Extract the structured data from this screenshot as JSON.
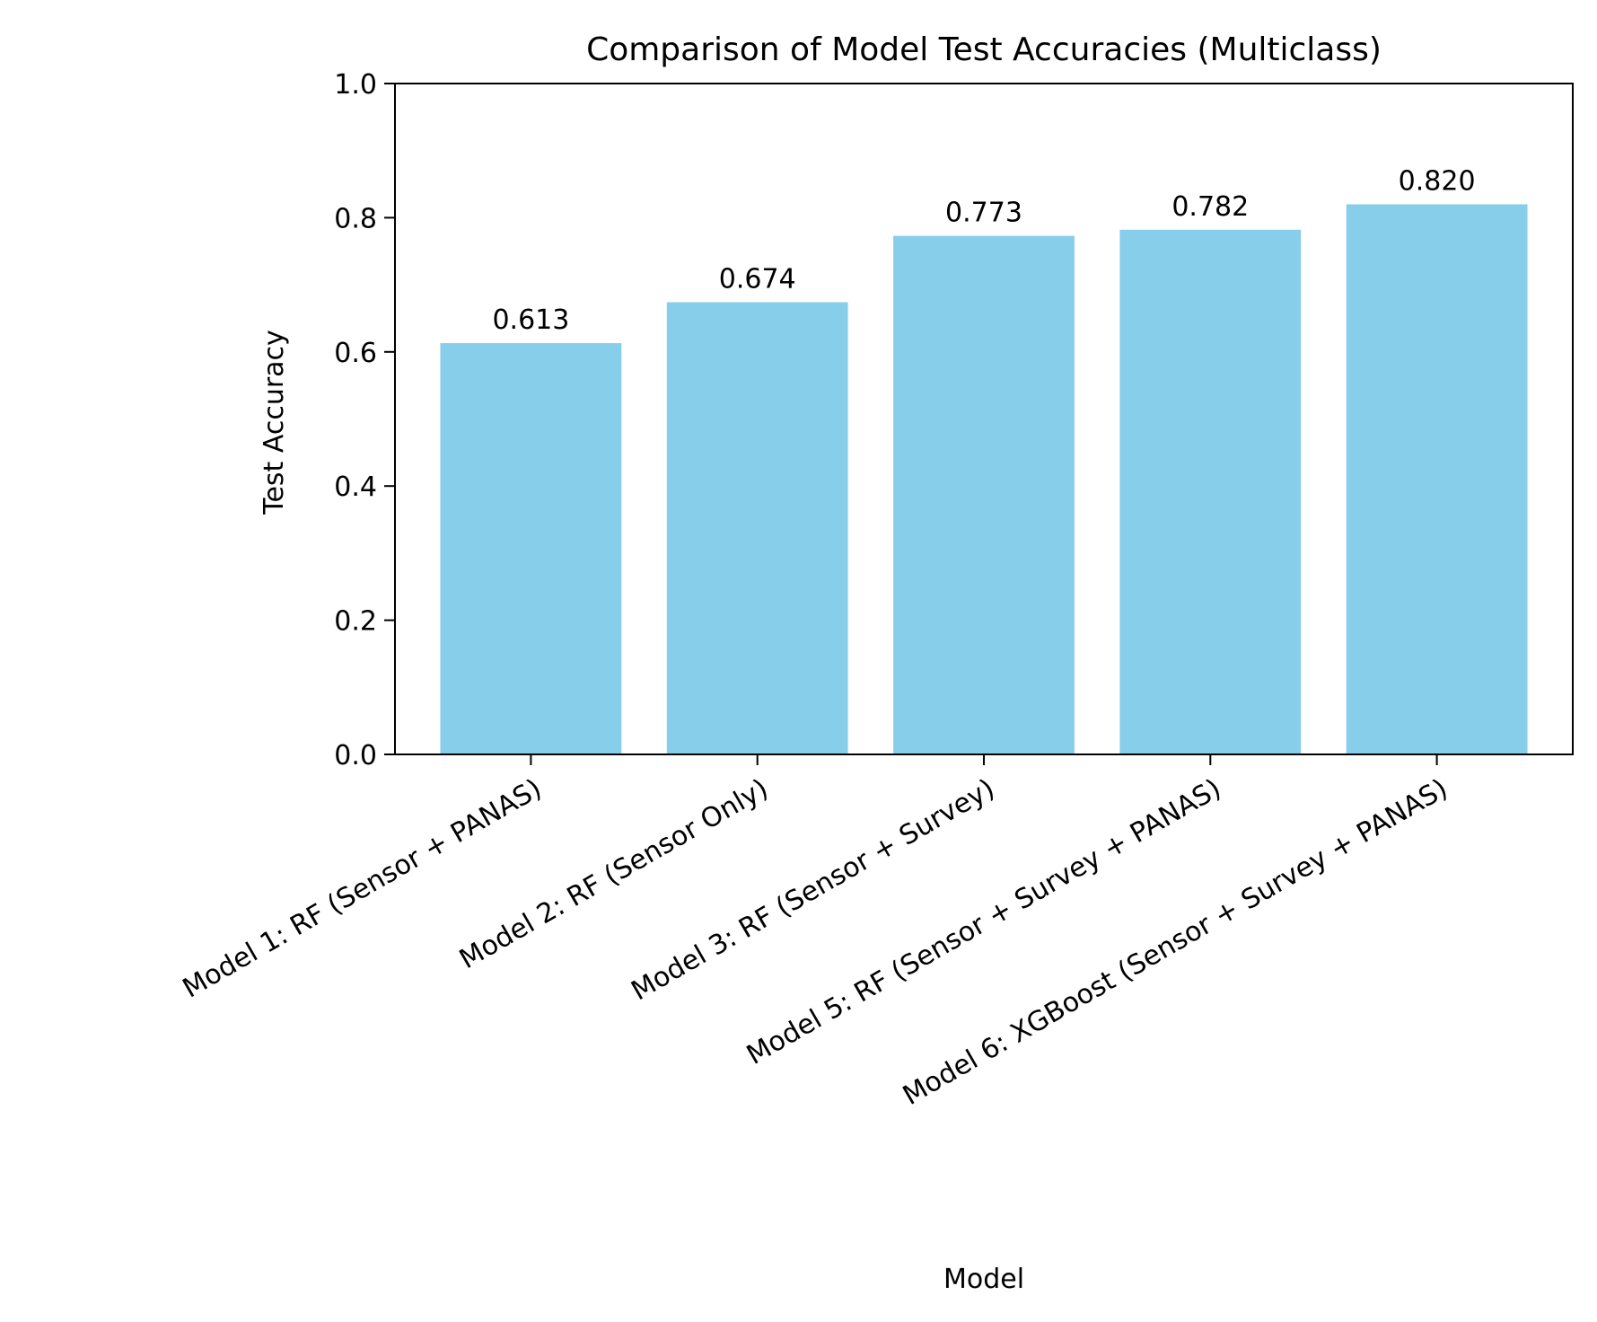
{
  "chart_data": {
    "type": "bar",
    "title": "Comparison of Model Test Accuracies (Multiclass)",
    "xlabel": "Model",
    "ylabel": "Test Accuracy",
    "categories": [
      "Model 1: RF (Sensor + PANAS)",
      "Model 2: RF (Sensor Only)",
      "Model 3: RF (Sensor + Survey)",
      "Model 5: RF (Sensor + Survey + PANAS)",
      "Model 6: XGBoost (Sensor + Survey + PANAS)"
    ],
    "values": [
      0.613,
      0.674,
      0.773,
      0.782,
      0.82
    ],
    "value_labels": [
      "0.613",
      "0.674",
      "0.773",
      "0.782",
      "0.820"
    ],
    "ylim": [
      0,
      1.0
    ],
    "yticks": [
      "0.0",
      "0.2",
      "0.4",
      "0.6",
      "0.8",
      "1.0"
    ],
    "grid": false,
    "bar_color": "#87ceeb"
  }
}
